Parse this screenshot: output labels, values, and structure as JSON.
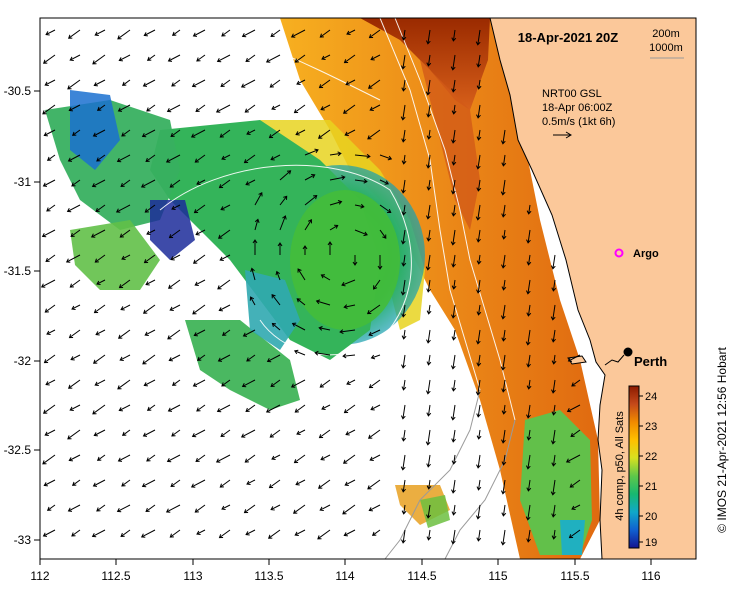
{
  "title": "18-Apr-2021 20Z",
  "depth_labels": [
    "200m",
    "1000m"
  ],
  "current_legend": {
    "product": "NRT00 GSL",
    "time": "18-Apr 06:00Z",
    "scale": "0.5m/s (1kt 6h)"
  },
  "places": {
    "argo": "Argo",
    "perth": "Perth"
  },
  "colorbar": {
    "ticks": [
      "24",
      "23",
      "22",
      "21",
      "20",
      "19"
    ],
    "min": 19,
    "max": 24.2,
    "label": "4h comp, p50, All Sats",
    "colors": [
      "#8b1a00",
      "#c4491a",
      "#f08a00",
      "#ffc000",
      "#d8e020",
      "#5ec84a",
      "#18b870",
      "#10a8c8",
      "#1060d0",
      "#141490"
    ]
  },
  "credit": "© IMOS 21-Apr-2021 12:56 Hobart",
  "axes": {
    "x_ticks": [
      "112",
      "112.5",
      "113",
      "113.5",
      "114",
      "114.5",
      "115",
      "115.5",
      "116"
    ],
    "y_ticks": [
      "-30.5",
      "-31",
      "-31.5",
      "-32",
      "-32.5",
      "-33"
    ],
    "lon_range": [
      112,
      116.3
    ],
    "lat_range": [
      -30.1,
      -33.1
    ]
  },
  "colors": {
    "land": "#fbc89a",
    "ocean_bg": "#ffffff",
    "argo_marker": "#ff00ff",
    "perth_marker": "#000000",
    "isobath": "#ffffff",
    "isobath_deep": "#9a9a9a"
  }
}
